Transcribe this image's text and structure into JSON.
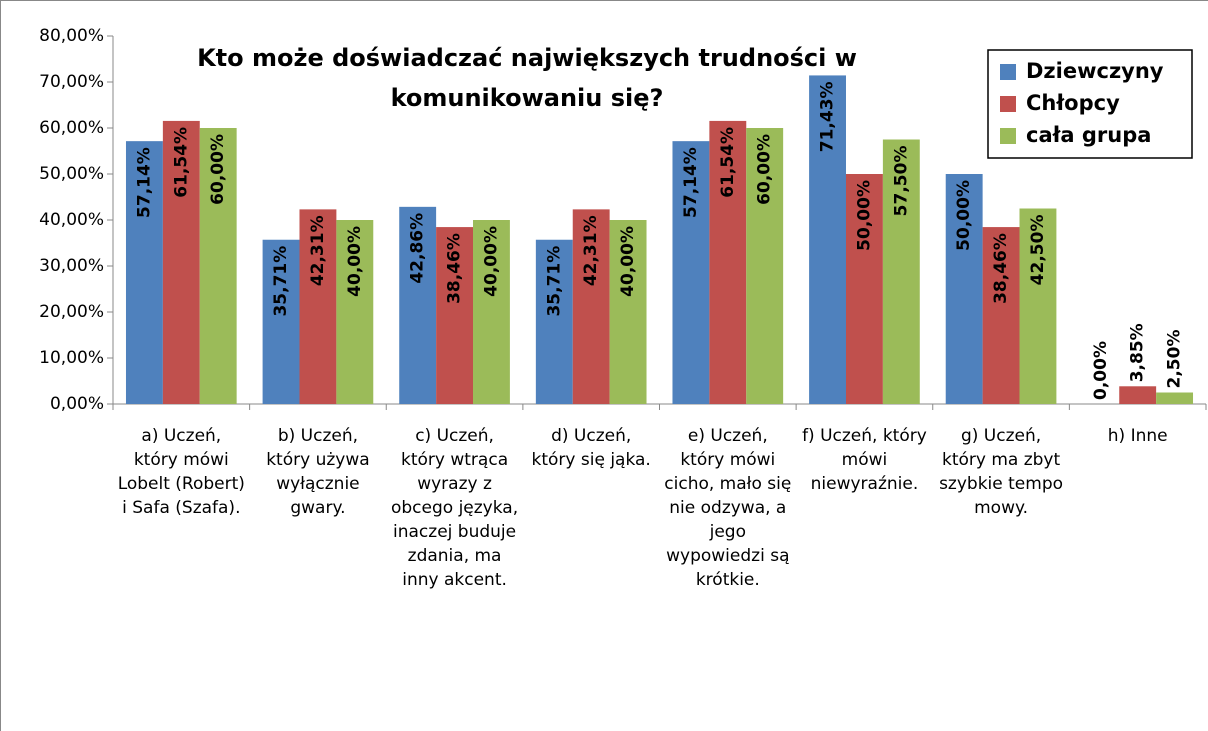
{
  "chart_data": {
    "type": "bar",
    "title": "Kto może doświadczać największych trudności w komunikowaniu się?",
    "categories": [
      "a)  Uczeń, który mówi Lobelt (Robert) i Safa (Szafa).",
      "b)  Uczeń, który używa wyłącznie gwary.",
      "c)  Uczeń, który wtrąca wyrazy z obcego języka, inaczej buduje zdania, ma inny akcent.",
      "d)  Uczeń, który się jąka.",
      "e) Uczeń, który mówi cicho, mało się nie odzywa, a jego wypowiedzi są krótkie.",
      "f)  Uczeń, który mówi niewyraźnie.",
      "g) Uczeń, który ma zbyt szybkie tempo mowy.",
      "h) Inne"
    ],
    "series": [
      {
        "name": "Dziewczyny",
        "color": "#4f81bd",
        "values": [
          57.14,
          35.71,
          42.86,
          35.71,
          57.14,
          71.43,
          50,
          0
        ],
        "value_labels": [
          "57,14%",
          "35,71%",
          "42,86%",
          "35,71%",
          "57,14%",
          "71,43%",
          "50,00%",
          "0,00%"
        ]
      },
      {
        "name": "Chłopcy",
        "color": "#c0504d",
        "values": [
          61.54,
          42.31,
          38.46,
          42.31,
          61.54,
          50,
          38.46,
          3.85
        ],
        "value_labels": [
          "61,54%",
          "42,31%",
          "38,46%",
          "42,31%",
          "61,54%",
          "50,00%",
          "38,46%",
          "3,85%"
        ]
      },
      {
        "name": "cała grupa",
        "color": "#9bbb59",
        "values": [
          60,
          40,
          40,
          40,
          60,
          57.5,
          42.5,
          2.5
        ],
        "value_labels": [
          "60,00%",
          "40,00%",
          "40,00%",
          "40,00%",
          "60,00%",
          "57,50%",
          "42,50%",
          "2,50%"
        ]
      }
    ],
    "ylim": [
      0,
      80
    ],
    "yticks": [
      {
        "value": 0,
        "label": "0,00%"
      },
      {
        "value": 10,
        "label": "10,00%"
      },
      {
        "value": 20,
        "label": "20,00%"
      },
      {
        "value": 30,
        "label": "30,00%"
      },
      {
        "value": 40,
        "label": "40,00%"
      },
      {
        "value": 50,
        "label": "50,00%"
      },
      {
        "value": 60,
        "label": "60,00%"
      },
      {
        "value": 70,
        "label": "70,00%"
      },
      {
        "value": 80,
        "label": "80,00%"
      }
    ],
    "legend": "top-right"
  }
}
